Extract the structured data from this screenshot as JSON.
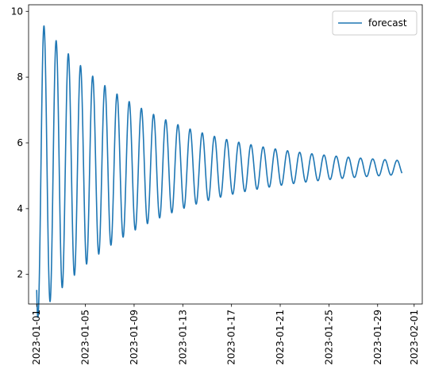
{
  "chart_data": {
    "type": "line",
    "title": "",
    "xlabel": "",
    "ylabel": "",
    "x_start": "2023-01-01",
    "x_end": "2023-01-31",
    "xlim": [
      "2022-12-31T08:00",
      "2023-02-01T16:00"
    ],
    "ylim": [
      1.1,
      10.2
    ],
    "x_ticks": [
      "2023-01-01",
      "2023-01-05",
      "2023-01-09",
      "2023-01-13",
      "2023-01-17",
      "2023-01-21",
      "2023-01-25",
      "2023-01-29",
      "2023-02-01"
    ],
    "y_ticks": [
      2,
      4,
      6,
      8,
      10
    ],
    "grid": false,
    "legend": {
      "position": "top-right",
      "entries": [
        "forecast"
      ]
    },
    "series": [
      {
        "name": "forecast",
        "color": "#1f77b4",
        "model": {
          "baseline": 5.25,
          "initial_amplitude": 4.55,
          "decay_time_days": 9.0,
          "period_days": 1.0,
          "peak_phase_days": 0.6,
          "amplitude_floor": 0.05
        }
      }
    ]
  }
}
